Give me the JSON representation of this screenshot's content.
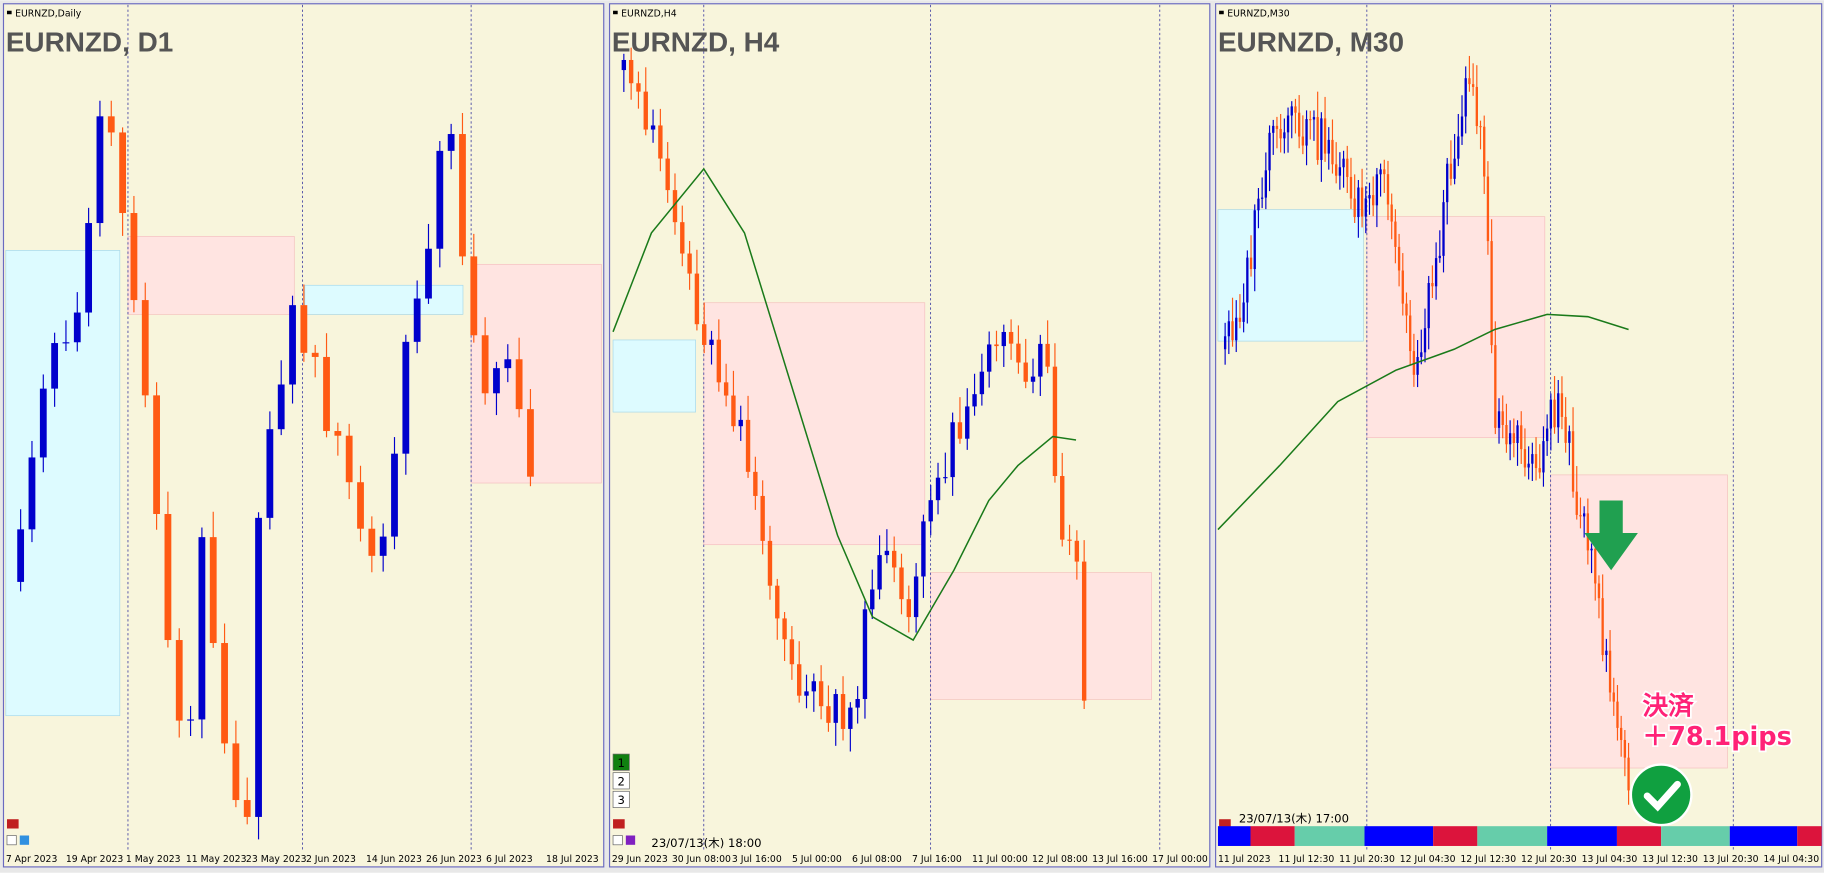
{
  "panels": [
    {
      "window_title": "EURNZD,Daily",
      "label": "EURNZD, D1",
      "time_labels": [
        "7 Apr 2023",
        "19 Apr 2023",
        "1 May 2023",
        "11 May 2023",
        "23 May 2023",
        "2 Jun 2023",
        "14 Jun 2023",
        "26 Jun 2023",
        "6 Jul 2023",
        "18 Jul 2023"
      ]
    },
    {
      "window_title": "EURNZD,H4",
      "label": "EURNZD, H4",
      "time_labels": [
        "29 Jun 2023",
        "30 Jun 08:00",
        "3 Jul 16:00",
        "5 Jul 00:00",
        "6 Jul 08:00",
        "7 Jul 16:00",
        "11 Jul 00:00",
        "12 Jul 08:00",
        "13 Jul 16:00",
        "17 Jul 00:00"
      ],
      "timestamp": "23/07/13(木) 18:00",
      "buttons": [
        "1",
        "2",
        "3"
      ]
    },
    {
      "window_title": "EURNZD,M30",
      "label": "EURNZD, M30",
      "time_labels": [
        "11 Jul 2023",
        "11 Jul 12:30",
        "11 Jul 20:30",
        "12 Jul 04:30",
        "12 Jul 12:30",
        "12 Jul 20:30",
        "13 Jul 04:30",
        "13 Jul 12:30",
        "13 Jul 20:30",
        "14 Jul 04:30"
      ],
      "timestamp": "23/07/13(木) 17:00",
      "annotation": {
        "line1": "決済",
        "line2": "＋78.1pips"
      }
    }
  ]
}
